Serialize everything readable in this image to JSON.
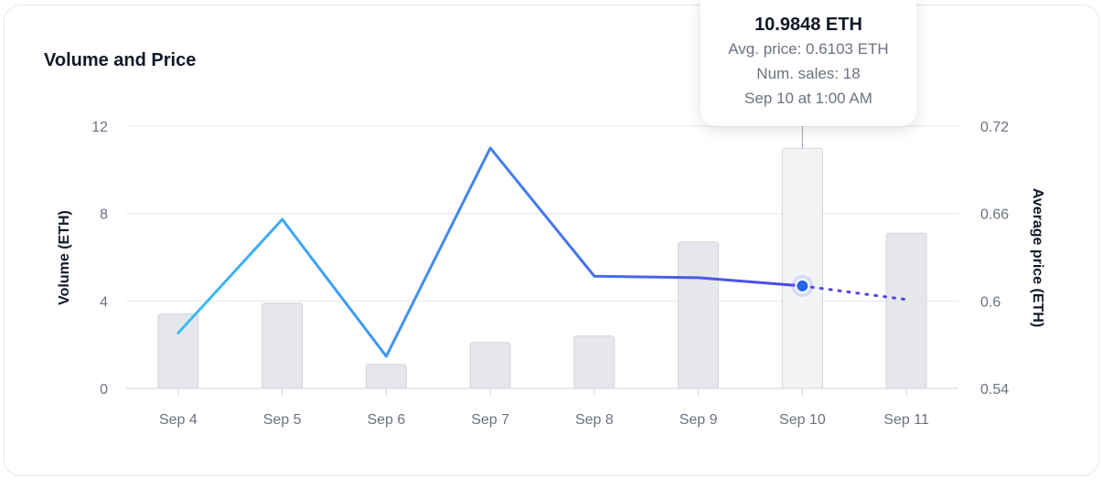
{
  "chart_data": {
    "type": "bar",
    "title": "Volume and Price",
    "categories": [
      "Sep 4",
      "Sep 5",
      "Sep 6",
      "Sep 7",
      "Sep 8",
      "Sep 9",
      "Sep 10",
      "Sep 11"
    ],
    "series": [
      {
        "kind": "bar",
        "axis": "left",
        "values": [
          3.4,
          3.9,
          1.1,
          2.1,
          2.4,
          6.7,
          10.9848,
          7.1
        ]
      },
      {
        "kind": "line",
        "axis": "right",
        "values": [
          0.578,
          0.656,
          0.562,
          0.705,
          0.617,
          0.616,
          0.6103,
          0.601
        ]
      }
    ],
    "ylabel": "Volume (ETH)",
    "y2label": "Average price (ETH)",
    "ylim": [
      0,
      12
    ],
    "y2lim": [
      0.54,
      0.72
    ],
    "yticks": [
      "0",
      "4",
      "8",
      "12"
    ],
    "y2ticks": [
      "0.54",
      "0.6",
      "0.66",
      "0.72"
    ],
    "grid": true,
    "highlight_index": 6,
    "colors": {
      "bar": "#e5e7eb",
      "bar_highlight": "#f3f4f6",
      "line_start": "#38bdf8",
      "line_end": "#4f46e5",
      "marker": "#2563eb"
    },
    "tooltip": {
      "title": "10.9848 ETH",
      "avg_price": "Avg. price: 0.6103 ETH",
      "num_sales": "Num. sales: 18",
      "time": "Sep 10 at 1:00 AM"
    }
  }
}
